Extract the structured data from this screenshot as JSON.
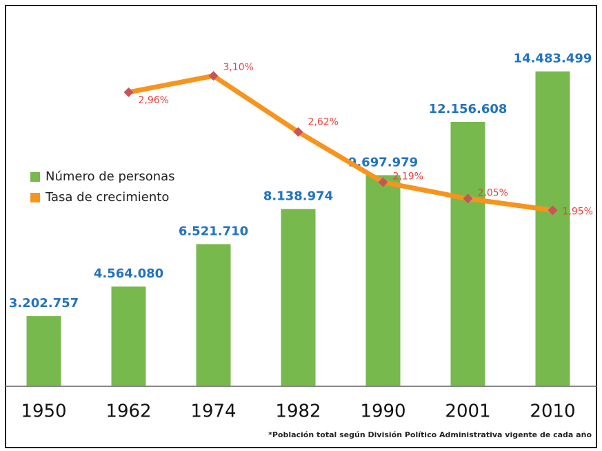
{
  "chart_data": {
    "type": "combo",
    "categories": [
      "1950",
      "1962",
      "1974",
      "1982",
      "1990",
      "2001",
      "2010"
    ],
    "series": [
      {
        "name": "Número de personas",
        "type": "bar",
        "color": "#77b94d",
        "values": [
          3202757,
          4564080,
          6521710,
          8138974,
          9697979,
          12156608,
          14483499
        ],
        "value_labels": [
          "3.202.757",
          "4.564.080",
          "6.521.710",
          "8.138.974",
          "9.697.979",
          "12.156.608",
          "14.483.499"
        ]
      },
      {
        "name": "Tasa de crecimiento",
        "type": "line",
        "axis": "y2",
        "color": "#f7941d",
        "marker_color": "#c8545a",
        "values": [
          null,
          2.96,
          3.1,
          2.62,
          2.19,
          2.05,
          1.95
        ],
        "value_labels": [
          null,
          "2,96%",
          "3,10%",
          "2,62%",
          "2,19%",
          "2,05%",
          "1,95%"
        ]
      }
    ],
    "ylim": [
      0,
      14600000
    ],
    "y2lim": [
      0.45,
      3.16
    ],
    "legend": "left",
    "annotation": "*Población total según División Político Administrativa vigente de cada año"
  }
}
